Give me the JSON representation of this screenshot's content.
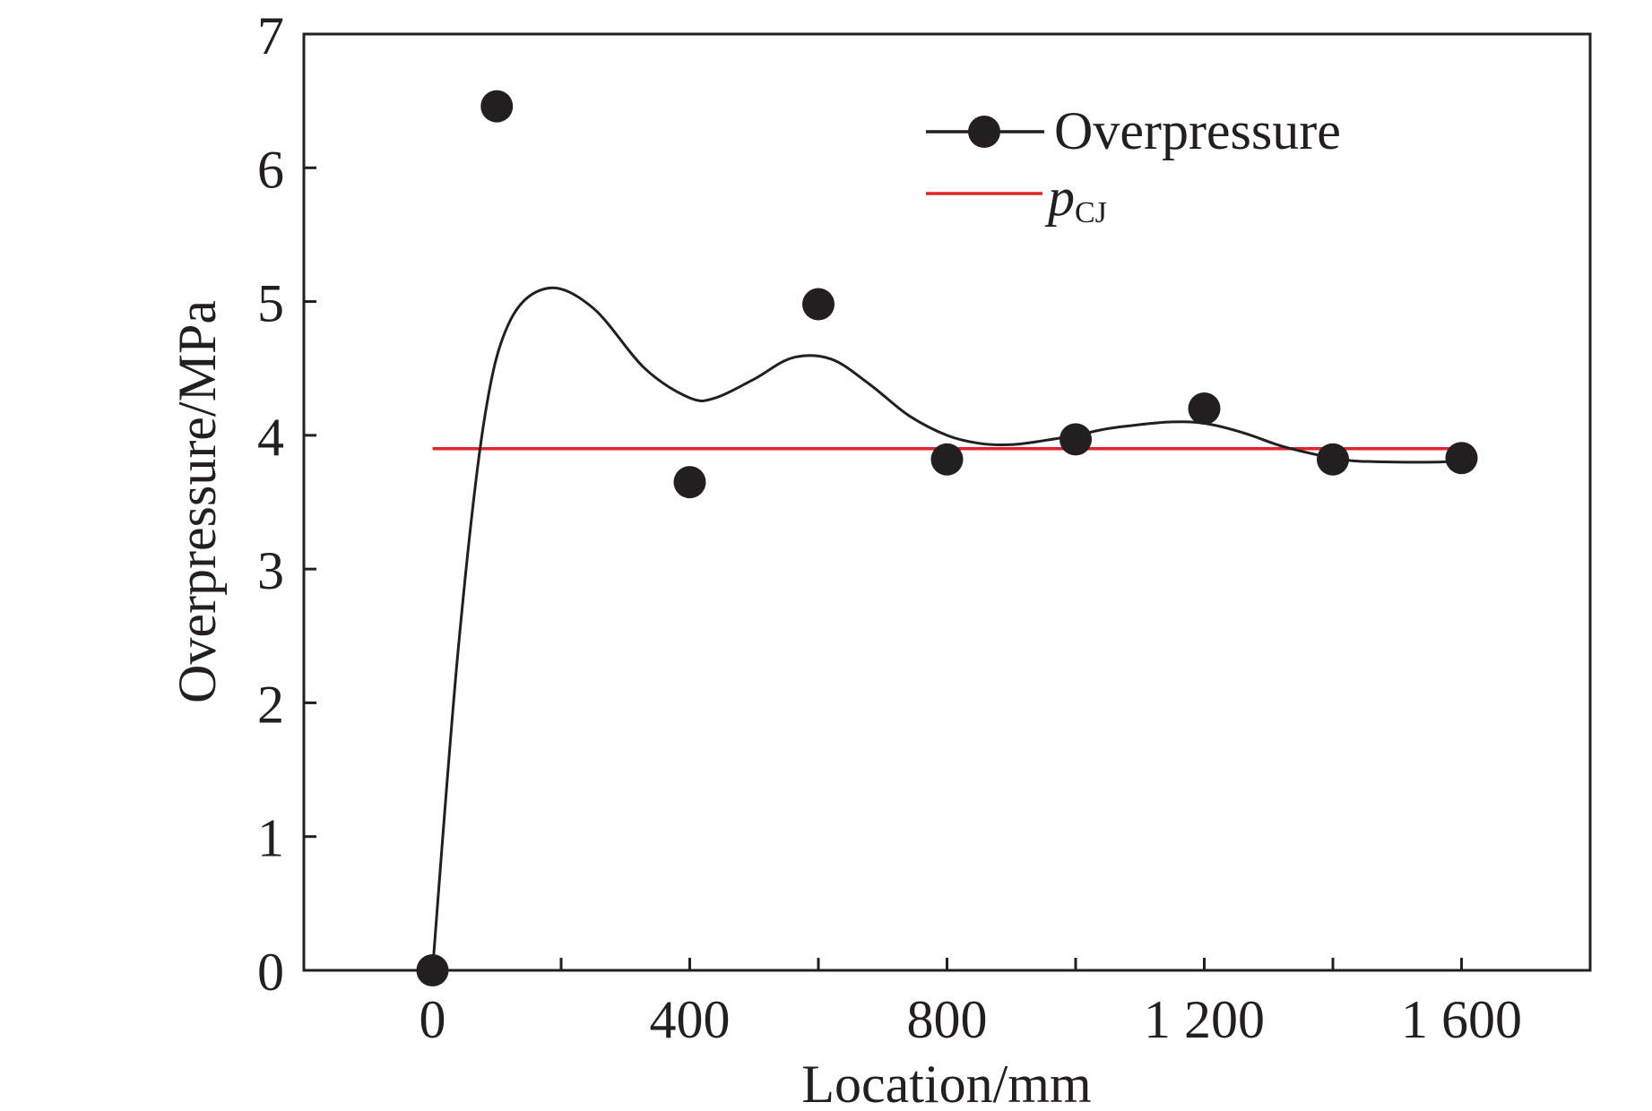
{
  "chart_data": {
    "type": "scatter",
    "title": "",
    "xlabel": "Location/mm",
    "ylabel": "Overpressure/MPa",
    "xlim": [
      -200,
      1800
    ],
    "ylim": [
      0,
      7
    ],
    "x_ticks": [
      0,
      400,
      800,
      1200,
      1600
    ],
    "x_tick_labels": [
      "0",
      "400",
      "800",
      "1 200",
      "1 600"
    ],
    "x_minor_ticks": [
      200,
      600,
      1000,
      1400
    ],
    "y_ticks": [
      0,
      1,
      2,
      3,
      4,
      5,
      6,
      7
    ],
    "y_tick_labels": [
      "0",
      "1",
      "2",
      "3",
      "4",
      "5",
      "6",
      "7"
    ],
    "grid": false,
    "legend_position": "top-right",
    "series": [
      {
        "name": "Overpressure",
        "marker": "circle",
        "line": "smooth",
        "x": [
          0,
          100,
          400,
          600,
          800,
          1000,
          1200,
          1400,
          1600
        ],
        "values": [
          0,
          6.46,
          3.65,
          4.98,
          3.82,
          3.97,
          4.2,
          3.82,
          3.83
        ],
        "curve_x": [
          0,
          40,
          80,
          120,
          180,
          250,
          330,
          400,
          440,
          500,
          560,
          620,
          680,
          740,
          800,
          850,
          900,
          950,
          1000,
          1050,
          1100,
          1150,
          1200,
          1260,
          1320,
          1380,
          1430,
          1500,
          1560,
          1600
        ],
        "curve_y": [
          0,
          2.4,
          4.1,
          4.85,
          5.1,
          4.95,
          4.5,
          4.28,
          4.28,
          4.42,
          4.58,
          4.57,
          4.38,
          4.15,
          4.0,
          3.94,
          3.93,
          3.96,
          4.0,
          4.05,
          4.08,
          4.1,
          4.09,
          4.02,
          3.92,
          3.85,
          3.81,
          3.8,
          3.8,
          3.81
        ],
        "color": "#231f20"
      },
      {
        "name": "pCJ",
        "label_main": "p",
        "label_sub": "CJ",
        "line": "straight",
        "x": [
          0,
          1600
        ],
        "values": [
          3.9,
          3.9
        ],
        "color": "#e0262b"
      }
    ]
  }
}
